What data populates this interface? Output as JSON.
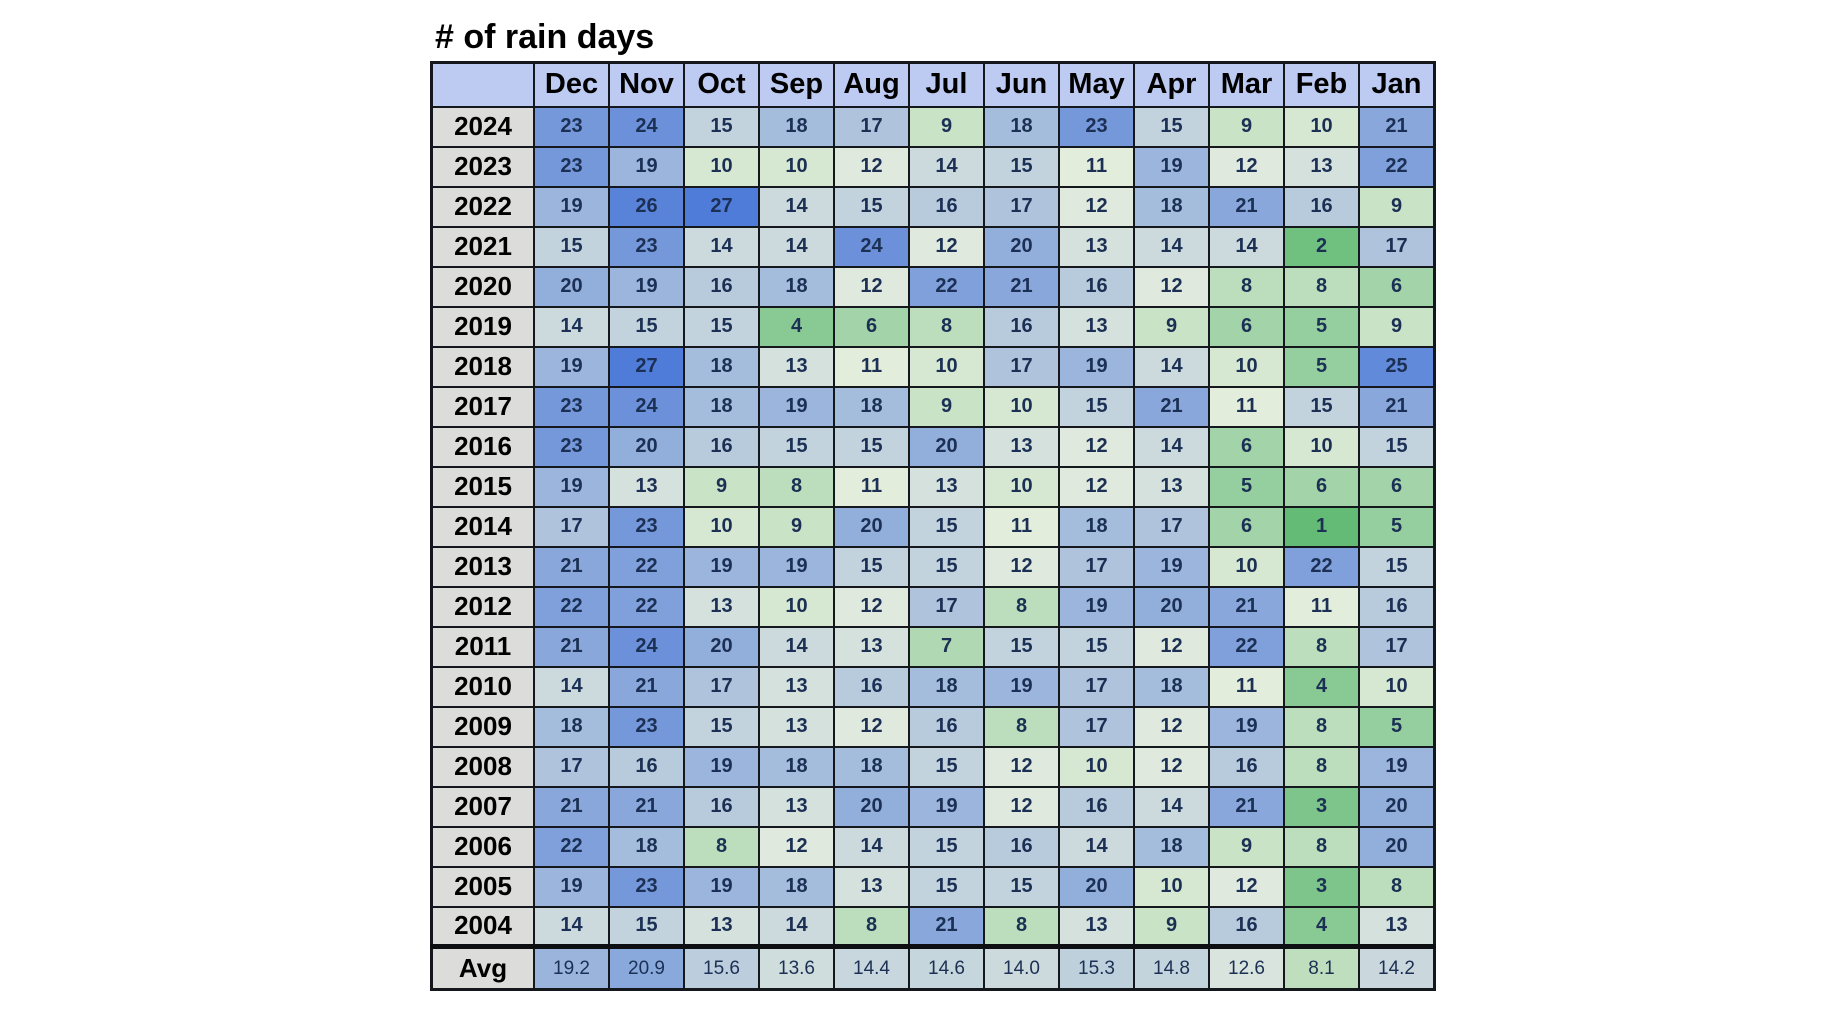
{
  "title": "# of rain days",
  "chart_data": {
    "type": "heatmap",
    "title": "# of rain days",
    "columns": [
      "Dec",
      "Nov",
      "Oct",
      "Sep",
      "Aug",
      "Jul",
      "Jun",
      "May",
      "Apr",
      "Mar",
      "Feb",
      "Jan"
    ],
    "rows": [
      {
        "label": "2024",
        "values": [
          23,
          24,
          15,
          18,
          17,
          9,
          18,
          23,
          15,
          9,
          10,
          21
        ]
      },
      {
        "label": "2023",
        "values": [
          23,
          19,
          10,
          10,
          12,
          14,
          15,
          11,
          19,
          12,
          13,
          22
        ]
      },
      {
        "label": "2022",
        "values": [
          19,
          26,
          27,
          14,
          15,
          16,
          17,
          12,
          18,
          21,
          16,
          9
        ]
      },
      {
        "label": "2021",
        "values": [
          15,
          23,
          14,
          14,
          24,
          12,
          20,
          13,
          14,
          14,
          2,
          17
        ]
      },
      {
        "label": "2020",
        "values": [
          20,
          19,
          16,
          18,
          12,
          22,
          21,
          16,
          12,
          8,
          8,
          6
        ]
      },
      {
        "label": "2019",
        "values": [
          14,
          15,
          15,
          4,
          6,
          8,
          16,
          13,
          9,
          6,
          5,
          9
        ]
      },
      {
        "label": "2018",
        "values": [
          19,
          27,
          18,
          13,
          11,
          10,
          17,
          19,
          14,
          10,
          5,
          25
        ]
      },
      {
        "label": "2017",
        "values": [
          23,
          24,
          18,
          19,
          18,
          9,
          10,
          15,
          21,
          11,
          15,
          21
        ]
      },
      {
        "label": "2016",
        "values": [
          23,
          20,
          16,
          15,
          15,
          20,
          13,
          12,
          14,
          6,
          10,
          15
        ]
      },
      {
        "label": "2015",
        "values": [
          19,
          13,
          9,
          8,
          11,
          13,
          10,
          12,
          13,
          5,
          6,
          6
        ]
      },
      {
        "label": "2014",
        "values": [
          17,
          23,
          10,
          9,
          20,
          15,
          11,
          18,
          17,
          6,
          1,
          5
        ]
      },
      {
        "label": "2013",
        "values": [
          21,
          22,
          19,
          19,
          15,
          15,
          12,
          17,
          19,
          10,
          22,
          15
        ]
      },
      {
        "label": "2012",
        "values": [
          22,
          22,
          13,
          10,
          12,
          17,
          8,
          19,
          20,
          21,
          11,
          16
        ]
      },
      {
        "label": "2011",
        "values": [
          21,
          24,
          20,
          14,
          13,
          7,
          15,
          15,
          12,
          22,
          8,
          17
        ]
      },
      {
        "label": "2010",
        "values": [
          14,
          21,
          17,
          13,
          16,
          18,
          19,
          17,
          18,
          11,
          4,
          10
        ]
      },
      {
        "label": "2009",
        "values": [
          18,
          23,
          15,
          13,
          12,
          16,
          8,
          17,
          12,
          19,
          8,
          5
        ]
      },
      {
        "label": "2008",
        "values": [
          17,
          16,
          19,
          18,
          18,
          15,
          12,
          10,
          12,
          16,
          8,
          19
        ]
      },
      {
        "label": "2007",
        "values": [
          21,
          21,
          16,
          13,
          20,
          19,
          12,
          16,
          14,
          21,
          3,
          20
        ]
      },
      {
        "label": "2006",
        "values": [
          22,
          18,
          8,
          12,
          14,
          15,
          16,
          14,
          18,
          9,
          8,
          20
        ]
      },
      {
        "label": "2005",
        "values": [
          19,
          23,
          19,
          18,
          13,
          15,
          15,
          20,
          10,
          12,
          3,
          8
        ]
      },
      {
        "label": "2004",
        "values": [
          14,
          15,
          13,
          14,
          8,
          21,
          8,
          13,
          9,
          16,
          4,
          13
        ]
      }
    ],
    "avg_row": {
      "label": "Avg",
      "values": [
        "19.2",
        "20.9",
        "15.6",
        "13.6",
        "14.4",
        "14.6",
        "14.0",
        "15.3",
        "14.8",
        "12.6",
        "8.1",
        "14.2"
      ]
    },
    "color_scale": {
      "min_value": 1,
      "mid_value": 11.25,
      "max_value": 27,
      "min_color": "#63bb76",
      "mid_color": "#e6eede",
      "max_color": "#4f7bd9"
    },
    "header_bg": "#bdcaf1",
    "row_header_bg": "#dcdcda",
    "number_color": "#1b3054",
    "border_color": "#14171b",
    "legend_position": "none",
    "grid": true
  }
}
